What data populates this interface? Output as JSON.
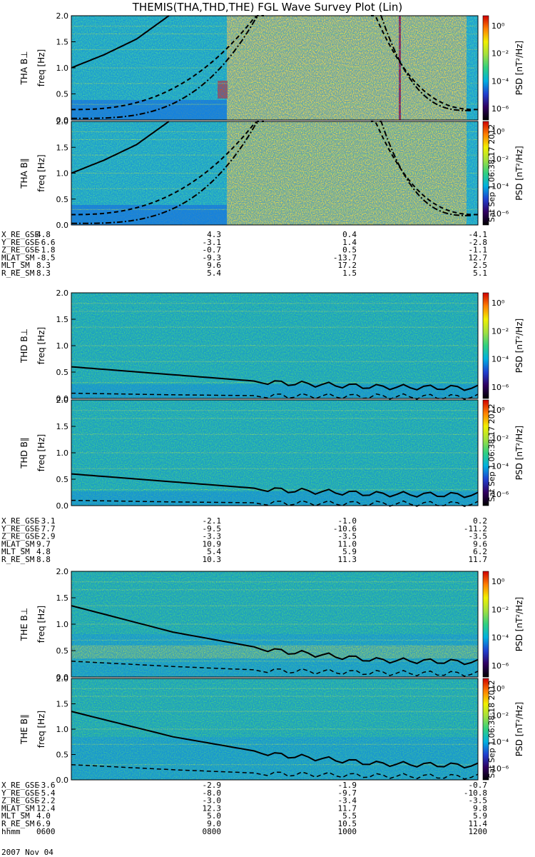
{
  "title": "THEMIS(THA,THD,THE) FGL Wave Survey Plot (Lin)",
  "colorbar": {
    "label": "PSD [nT²/Hz]",
    "ticks": [
      "10⁰",
      "10⁻²",
      "10⁻⁴",
      "10⁻⁶"
    ],
    "stops": [
      "#000000",
      "#300060",
      "#2040d0",
      "#00b0e0",
      "#30d080",
      "#a0e040",
      "#f0f000",
      "#ff8000",
      "#d00000"
    ]
  },
  "ylim": [
    0,
    2.0
  ],
  "ytick_labels": [
    "0.0",
    "0.5",
    "1.0",
    "1.5",
    "2.0"
  ],
  "stamp": "Sat Sep 1 06:38:17 2012",
  "stamp2": "Sat Sep 1 06:38:18 2012",
  "chart_data": [
    {
      "type": "heatmap",
      "probe": "THA",
      "component": "B⊥",
      "ylabel": "THA B⊥",
      "ylabel2": "freq [Hz]",
      "ylim": [
        0,
        2.0
      ],
      "lines": {
        "solid": [
          1.0,
          1.25,
          1.55,
          2.0
        ],
        "dashed": [
          0.2,
          0.3,
          0.45,
          1.0,
          2.0
        ],
        "dashdot": [
          0.03,
          0.06,
          0.12,
          0.25,
          0.6
        ]
      }
    },
    {
      "type": "heatmap",
      "probe": "THA",
      "component": "B∥",
      "ylabel": "THA B∥",
      "ylabel2": "freq [Hz]",
      "ylim": [
        0,
        2.0
      ],
      "lines": {
        "solid": [
          1.0,
          1.25,
          1.55,
          2.0
        ],
        "dashed": [
          0.2,
          0.3,
          0.45,
          1.0,
          2.0
        ],
        "dashdot": [
          0.03,
          0.06,
          0.12,
          0.25,
          0.6
        ]
      }
    },
    {
      "type": "heatmap",
      "probe": "THD",
      "component": "B⊥",
      "ylabel": "THD B⊥",
      "ylabel2": "freq [Hz]",
      "ylim": [
        0,
        2.0
      ],
      "lines": {
        "solid": [
          0.6,
          0.45,
          0.3,
          0.22,
          0.2
        ],
        "dashed": [
          0.1,
          0.07,
          0.05,
          0.04,
          0.03
        ]
      }
    },
    {
      "type": "heatmap",
      "probe": "THD",
      "component": "B∥",
      "ylabel": "THD B∥",
      "ylabel2": "freq [Hz]",
      "ylim": [
        0,
        2.0
      ],
      "lines": {
        "solid": [
          0.6,
          0.45,
          0.3,
          0.22,
          0.2
        ],
        "dashed": [
          0.1,
          0.07,
          0.05,
          0.04,
          0.03
        ]
      }
    },
    {
      "type": "heatmap",
      "probe": "THE",
      "component": "B⊥",
      "ylabel": "THE B⊥",
      "ylabel2": "freq [Hz]",
      "ylim": [
        0,
        2.0
      ],
      "lines": {
        "solid": [
          1.35,
          0.85,
          0.5,
          0.32,
          0.28
        ],
        "dashed": [
          0.3,
          0.2,
          0.12,
          0.08,
          0.06
        ]
      }
    },
    {
      "type": "heatmap",
      "probe": "THE",
      "component": "B∥",
      "ylabel": "THE B∥",
      "ylabel2": "freq [Hz]",
      "ylim": [
        0,
        2.0
      ],
      "lines": {
        "solid": [
          1.35,
          0.85,
          0.5,
          0.32,
          0.28
        ],
        "dashed": [
          0.3,
          0.2,
          0.12,
          0.08,
          0.06
        ]
      }
    }
  ],
  "ephemeris": [
    {
      "probe": "THA",
      "labels": [
        "X_RE_GSE",
        "Y_RE_GSE",
        "Z_RE_GSE",
        "MLAT_SM",
        "MLT_SM",
        "R_RE_SM"
      ],
      "values": [
        [
          "4.8",
          "4.3",
          "0.4",
          "-4.1"
        ],
        [
          "-6.6",
          "-3.1",
          "1.4",
          "-2.8"
        ],
        [
          "-1.8",
          "-0.7",
          "0.5",
          "-1.1"
        ],
        [
          "-8.5",
          "-9.3",
          "-13.7",
          "12.7"
        ],
        [
          "8.3",
          "9.6",
          "17.2",
          "2.5"
        ],
        [
          "8.3",
          "5.4",
          "1.5",
          "5.1"
        ]
      ]
    },
    {
      "probe": "THD",
      "labels": [
        "X_RE_GSE",
        "Y_RE_GSE",
        "Z_RE_GSE",
        "MLAT_SM",
        "MLT_SM",
        "R_RE_SM"
      ],
      "values": [
        [
          "-3.1",
          "-2.1",
          "-1.0",
          "0.2"
        ],
        [
          "-7.7",
          "-9.5",
          "-10.6",
          "-11.2"
        ],
        [
          "-2.9",
          "-3.3",
          "-3.5",
          "-3.5"
        ],
        [
          "9.7",
          "10.9",
          "11.0",
          "9.6"
        ],
        [
          "4.8",
          "5.4",
          "5.9",
          "6.2"
        ],
        [
          "8.8",
          "10.3",
          "11.3",
          "11.7"
        ]
      ]
    },
    {
      "probe": "THE",
      "labels": [
        "X_RE_GSE",
        "Y_RE_GSE",
        "Z_RE_GSE",
        "MLAT_SM",
        "MLT_SM",
        "R_RE_SM",
        "hhmm"
      ],
      "values": [
        [
          "-3.6",
          "-2.9",
          "-1.9",
          "-0.7"
        ],
        [
          "-5.4",
          "-8.0",
          "-9.7",
          "-10.8"
        ],
        [
          "-2.2",
          "-3.0",
          "-3.4",
          "-3.5"
        ],
        [
          "12.4",
          "12.3",
          "11.7",
          "9.8"
        ],
        [
          "4.0",
          "5.0",
          "5.5",
          "5.9"
        ],
        [
          "6.9",
          "9.0",
          "10.5",
          "11.4"
        ],
        [
          "0600",
          "0800",
          "1000",
          "1200"
        ]
      ]
    }
  ],
  "date": "2007 Nov 04"
}
